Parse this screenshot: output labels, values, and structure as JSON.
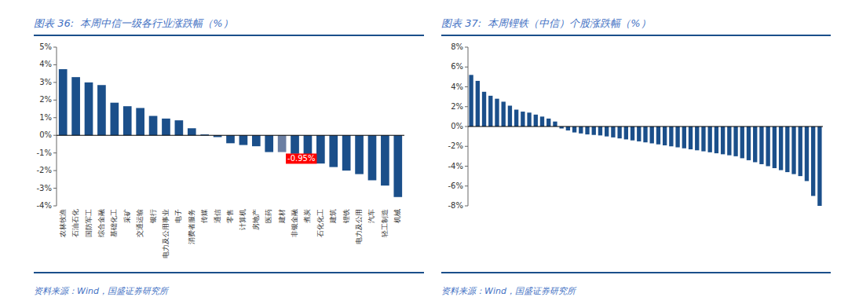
{
  "chart_data": [
    {
      "type": "bar",
      "title": "图表 36:  本周中信一级各行业涨跌幅（%）",
      "source": "资料来源：Wind，国盛证券研究所",
      "categories": [
        "农林牧渔",
        "石油石化",
        "国防军工",
        "综合金融",
        "基础化工",
        "采矿",
        "交通运输",
        "银行",
        "电力及公用事业",
        "电子",
        "消费者服务",
        "传媒",
        "通信",
        "零售",
        "计算机",
        "房地产",
        "医药",
        "建材",
        "非银金融",
        "煮炭",
        "石化化工",
        "建筑",
        "锂铁",
        "电力及公用",
        "汽车",
        "轻工制造",
        "机械"
      ],
      "values": [
        3.75,
        3.3,
        3.0,
        2.85,
        1.85,
        1.65,
        1.55,
        1.1,
        0.95,
        0.85,
        0.4,
        0.05,
        -0.1,
        -0.45,
        -0.55,
        -0.62,
        -0.95,
        -0.95,
        -1.05,
        -1.3,
        -1.6,
        -1.8,
        -2.0,
        -2.2,
        -2.55,
        -2.85,
        -3.5
      ],
      "colors": [
        "#1B4F8A",
        "#1B4F8A",
        "#1B4F8A",
        "#1B4F8A",
        "#1B4F8A",
        "#1B4F8A",
        "#1B4F8A",
        "#1B4F8A",
        "#1B4F8A",
        "#1B4F8A",
        "#1B4F8A",
        "#1B4F8A",
        "#1B4F8A",
        "#1B4F8A",
        "#1B4F8A",
        "#1B4F8A",
        "#1B4F8A",
        "#6B7FA3",
        "#1B4F8A",
        "#1B4F8A",
        "#1B4F8A",
        "#1B4F8A",
        "#1B4F8A",
        "#1B4F8A",
        "#1B4F8A",
        "#1B4F8A",
        "#1B4F8A"
      ],
      "ylim": [
        -4,
        5
      ],
      "yticks": [
        {
          "value": -4,
          "label": "-4%"
        },
        {
          "value": -3,
          "label": "-3%"
        },
        {
          "value": -2,
          "label": "-2%"
        },
        {
          "value": -1,
          "label": "-1%"
        },
        {
          "value": 0,
          "label": "0%"
        },
        {
          "value": 1,
          "label": "1%"
        },
        {
          "value": 2,
          "label": "2%"
        },
        {
          "value": 3,
          "label": "3%"
        },
        {
          "value": 4,
          "label": "4%"
        },
        {
          "value": 5,
          "label": "5%"
        }
      ],
      "annotations": [
        {
          "text": "-0.95%",
          "category": "建材",
          "value": -0.95
        }
      ]
    },
    {
      "type": "bar",
      "title": "图表 37:  本周锂铁（中信）个股涨跌幅（%）",
      "source": "资料来源：Wind，国盛证券研究所",
      "categories": [
        null,
        null,
        null,
        null,
        null,
        null,
        null,
        null,
        null,
        null,
        null,
        null,
        null,
        null,
        null,
        null,
        null,
        null,
        null,
        null,
        null,
        null,
        null,
        null,
        null,
        null,
        null,
        null,
        null,
        null,
        null,
        null,
        null,
        null,
        null,
        null,
        null,
        null,
        null,
        null,
        null,
        null,
        null,
        null,
        null,
        null,
        null,
        null,
        null,
        null,
        null,
        null,
        null,
        null,
        null
      ],
      "values": [
        5.2,
        4.6,
        3.5,
        3.1,
        2.8,
        2.5,
        2.1,
        1.7,
        1.5,
        1.4,
        1.2,
        1.0,
        0.8,
        0.5,
        -0.2,
        -0.4,
        -0.6,
        -0.7,
        -0.8,
        -0.85,
        -0.9,
        -1.0,
        -1.1,
        -1.2,
        -1.3,
        -1.4,
        -1.5,
        -1.6,
        -1.7,
        -1.8,
        -1.9,
        -2.0,
        -2.1,
        -2.2,
        -2.3,
        -2.4,
        -2.5,
        -2.6,
        -2.7,
        -2.8,
        -2.9,
        -3.0,
        -3.2,
        -3.4,
        -3.6,
        -3.8,
        -4.0,
        -4.2,
        -4.4,
        -4.6,
        -4.8,
        -5.0,
        -5.5,
        -7.0,
        -8.0
      ],
      "color": "#1B4F8A",
      "ylim": [
        -8,
        8
      ],
      "yticks": [
        {
          "value": -8,
          "label": "-8%"
        },
        {
          "value": -6,
          "label": "-6%"
        },
        {
          "value": -4,
          "label": "-4%"
        },
        {
          "value": -2,
          "label": "-2%"
        },
        {
          "value": 0,
          "label": "0%"
        },
        {
          "value": 2,
          "label": "2%"
        },
        {
          "value": 4,
          "label": "4%"
        },
        {
          "value": 6,
          "label": "6%"
        },
        {
          "value": 8,
          "label": "8%"
        }
      ]
    }
  ]
}
